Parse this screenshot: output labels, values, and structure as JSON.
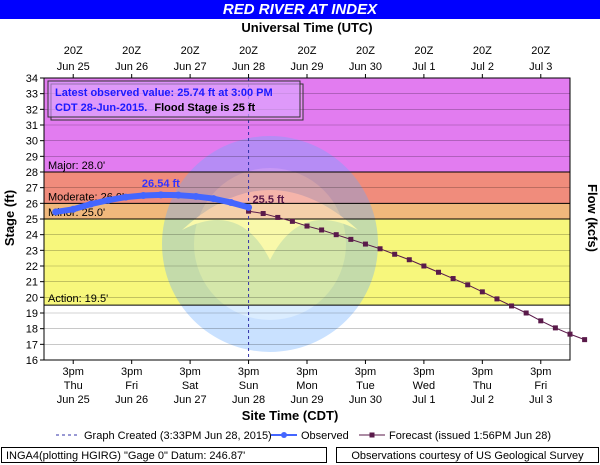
{
  "title": "RED RIVER AT INDEX",
  "chart_data": {
    "type": "line",
    "top_axis_title": "Universal Time (UTC)",
    "bottom_axis_title": "Site Time (CDT)",
    "ylabel_left": "Stage (ft)",
    "ylabel_right": "Flow (kcfs)",
    "ylim": [
      16,
      34
    ],
    "yticks": [
      16,
      17,
      18,
      19,
      20,
      21,
      22,
      23,
      24,
      25,
      26,
      27,
      28,
      29,
      30,
      31,
      32,
      33,
      34
    ],
    "x_range_days": [
      0,
      8
    ],
    "top_ticks": [
      {
        "t": 0,
        "l1": "20Z",
        "l2": "Jun 25"
      },
      {
        "t": 1,
        "l1": "20Z",
        "l2": "Jun 26"
      },
      {
        "t": 2,
        "l1": "20Z",
        "l2": "Jun 27"
      },
      {
        "t": 3,
        "l1": "20Z",
        "l2": "Jun 28"
      },
      {
        "t": 4,
        "l1": "20Z",
        "l2": "Jun 29"
      },
      {
        "t": 5,
        "l1": "20Z",
        "l2": "Jun 30"
      },
      {
        "t": 6,
        "l1": "20Z",
        "l2": "Jul  1"
      },
      {
        "t": 7,
        "l1": "20Z",
        "l2": "Jul  2"
      },
      {
        "t": 8,
        "l1": "20Z",
        "l2": "Jul  3"
      }
    ],
    "bottom_ticks": [
      {
        "t": 0,
        "l1": "3pm",
        "l2": "Thu",
        "l3": "Jun 25"
      },
      {
        "t": 1,
        "l1": "3pm",
        "l2": "Fri",
        "l3": "Jun 26"
      },
      {
        "t": 2,
        "l1": "3pm",
        "l2": "Sat",
        "l3": "Jun 27"
      },
      {
        "t": 3,
        "l1": "3pm",
        "l2": "Sun",
        "l3": "Jun 28"
      },
      {
        "t": 4,
        "l1": "3pm",
        "l2": "Mon",
        "l3": "Jun 29"
      },
      {
        "t": 5,
        "l1": "3pm",
        "l2": "Tue",
        "l3": "Jun 30"
      },
      {
        "t": 6,
        "l1": "3pm",
        "l2": "Wed",
        "l3": "Jul 1"
      },
      {
        "t": 7,
        "l1": "3pm",
        "l2": "Thu",
        "l3": "Jul 2"
      },
      {
        "t": 8,
        "l1": "3pm",
        "l2": "Fri",
        "l3": "Jul 3"
      }
    ],
    "flood_categories": [
      {
        "name": "Major",
        "label": "Major: 28.0'",
        "from": 28.0,
        "to": 34,
        "color": "#e27cf0"
      },
      {
        "name": "Moderate",
        "label": "Moderate: 26.0'",
        "from": 26.0,
        "to": 28.0,
        "color": "#f08c7c"
      },
      {
        "name": "Minor",
        "label": "Minor: 25.0'",
        "from": 25.0,
        "to": 26.0,
        "color": "#f0b87c"
      },
      {
        "name": "Action",
        "label": "Action: 19.5'",
        "from": 19.5,
        "to": 25.0,
        "color": "#f7f77c"
      }
    ],
    "series": [
      {
        "name": "Observed",
        "color": "#4466ff",
        "points": [
          [
            -0.3,
            25.45
          ],
          [
            0,
            25.62
          ],
          [
            0.3,
            25.95
          ],
          [
            0.6,
            26.2
          ],
          [
            0.9,
            26.4
          ],
          [
            1.2,
            26.5
          ],
          [
            1.5,
            26.54
          ],
          [
            1.8,
            26.52
          ],
          [
            2.1,
            26.44
          ],
          [
            2.4,
            26.3
          ],
          [
            2.7,
            26.05
          ],
          [
            3.0,
            25.74
          ]
        ]
      },
      {
        "name": "Forecast",
        "color": "#5a1a4a",
        "points": [
          [
            3.0,
            25.5
          ],
          [
            3.25,
            25.35
          ],
          [
            3.5,
            25.1
          ],
          [
            3.75,
            24.85
          ],
          [
            4.0,
            24.55
          ],
          [
            4.25,
            24.3
          ],
          [
            4.5,
            24.0
          ],
          [
            4.75,
            23.7
          ],
          [
            5.0,
            23.4
          ],
          [
            5.25,
            23.1
          ],
          [
            5.5,
            22.75
          ],
          [
            5.75,
            22.4
          ],
          [
            6.0,
            22.0
          ],
          [
            6.25,
            21.6
          ],
          [
            6.5,
            21.2
          ],
          [
            6.75,
            20.8
          ],
          [
            7.0,
            20.35
          ],
          [
            7.25,
            19.9
          ],
          [
            7.5,
            19.45
          ],
          [
            7.75,
            19.0
          ],
          [
            8.0,
            18.5
          ],
          [
            8.25,
            18.05
          ],
          [
            8.5,
            17.65
          ],
          [
            8.75,
            17.3
          ]
        ]
      }
    ],
    "annotations": {
      "peak_label": "26.54 ft",
      "peak": {
        "t": 1.5,
        "y": 26.54
      },
      "forecast_crest_label": "25.5 ft",
      "forecast_crest": {
        "t": 3.0,
        "y": 25.5
      },
      "graph_created_t": 3.0
    },
    "observed_box": {
      "line1": "Latest observed value: 25.74 ft at 3:00 PM",
      "line2_a": "CDT 28-Jun-2015.",
      "line2_b": "Flood Stage is 25 ft"
    },
    "legend": {
      "graph_created": "Graph Created (3:33PM Jun 28, 2015)",
      "observed": "Observed",
      "forecast": "Forecast (issued 1:56PM Jun 28)"
    }
  },
  "footer": {
    "left": "INGA4(plotting HGIRG) \"Gage 0\" Datum: 246.87'",
    "right": "Observations courtesy of US Geological Survey"
  }
}
